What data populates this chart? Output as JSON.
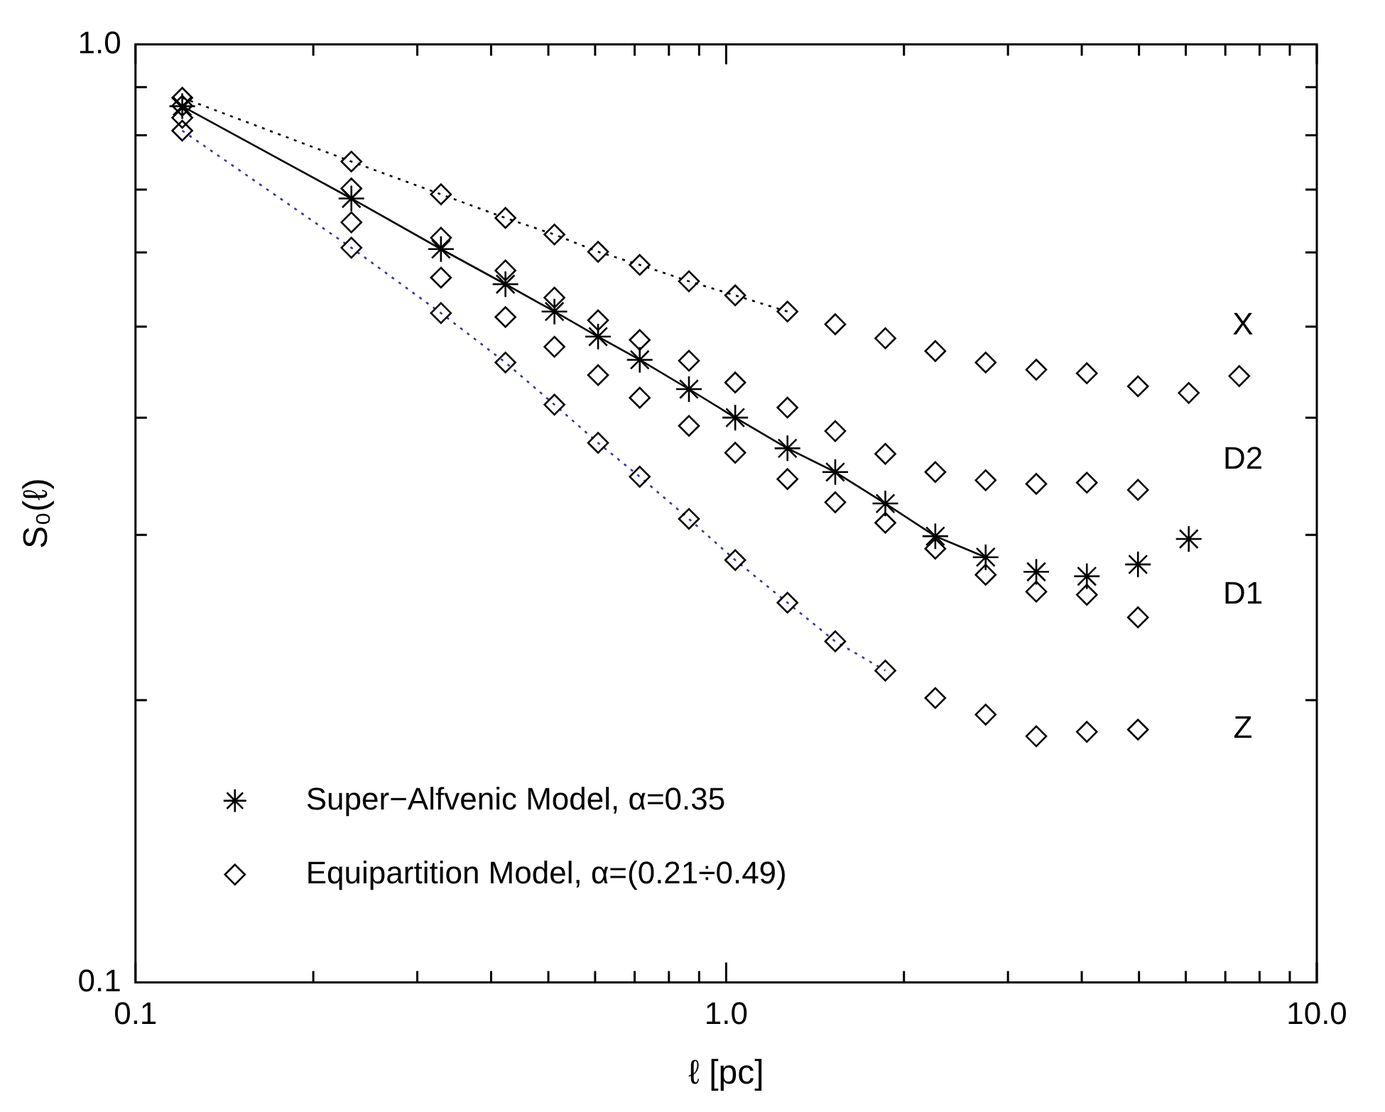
{
  "chart_data": {
    "type": "line",
    "xlabel": "ℓ [pc]",
    "ylabel": "S₀(ℓ)",
    "log": "xy",
    "grid": false,
    "legend": "bottom left",
    "xlim": [
      0.1,
      10
    ],
    "ylim": [
      0.1,
      1
    ],
    "xticks": [
      {
        "value": 0.1,
        "label": "0.1"
      },
      {
        "value": 0.2,
        "label": null
      },
      {
        "value": 0.3,
        "label": null
      },
      {
        "value": 0.4,
        "label": null
      },
      {
        "value": 0.5,
        "label": null
      },
      {
        "value": 0.6,
        "label": null
      },
      {
        "value": 0.7,
        "label": null
      },
      {
        "value": 0.8,
        "label": null
      },
      {
        "value": 0.9,
        "label": null
      },
      {
        "value": 1,
        "label": "1.0"
      },
      {
        "value": 2,
        "label": null
      },
      {
        "value": 3,
        "label": null
      },
      {
        "value": 4,
        "label": null
      },
      {
        "value": 5,
        "label": null
      },
      {
        "value": 6,
        "label": null
      },
      {
        "value": 7,
        "label": null
      },
      {
        "value": 8,
        "label": null
      },
      {
        "value": 9,
        "label": null
      },
      {
        "value": 10,
        "label": "10.0"
      }
    ],
    "yticks": [
      {
        "value": 0.1,
        "label": "0.1"
      },
      {
        "value": 0.2,
        "label": null
      },
      {
        "value": 0.3,
        "label": null
      },
      {
        "value": 0.4,
        "label": null
      },
      {
        "value": 0.5,
        "label": null
      },
      {
        "value": 0.6,
        "label": null
      },
      {
        "value": 0.7,
        "label": null
      },
      {
        "value": 0.8,
        "label": null
      },
      {
        "value": 0.9,
        "label": null
      },
      {
        "value": 1,
        "label": "1.0"
      }
    ],
    "series": [
      {
        "name": "Super−Alfvenic Model, α=0.35",
        "type": "line",
        "color": "#000000",
        "marker": "cross",
        "line_style": "solid",
        "x": [
          0.12,
          0.232,
          0.329,
          0.423,
          0.512,
          0.607,
          0.714,
          0.865,
          1.036,
          1.27,
          1.53,
          1.86,
          2.26,
          2.75
        ],
        "values": [
          0.859,
          0.685,
          0.605,
          0.555,
          0.519,
          0.488,
          0.461,
          0.429,
          0.4,
          0.371,
          0.35,
          0.324,
          0.299,
          0.284
        ]
      },
      {
        "type": "scatter",
        "color": "#000000",
        "marker": "cross",
        "x": [
          3.35,
          4.08,
          4.98,
          6.07
        ],
        "values": [
          0.274,
          0.271,
          0.279,
          0.297
        ]
      },
      {
        "name": "Equipartition Model, α=(0.21÷0.49)",
        "type": "line",
        "color": "#000000",
        "marker": "diamond",
        "line_style": "dotted",
        "x": [
          0.12,
          0.232,
          0.329,
          0.423,
          0.512,
          0.607,
          0.714,
          0.865,
          1.036,
          1.27
        ],
        "values": [
          0.877,
          0.75,
          0.692,
          0.653,
          0.627,
          0.601,
          0.582,
          0.559,
          0.54,
          0.519
        ]
      },
      {
        "type": "scatter",
        "color": "#000000",
        "marker": "diamond",
        "x": [
          1.53,
          1.86,
          2.26,
          2.75,
          3.35,
          4.08,
          4.98,
          6.07,
          7.39
        ],
        "values": [
          0.503,
          0.486,
          0.471,
          0.458,
          0.45,
          0.446,
          0.432,
          0.425,
          0.443
        ]
      },
      {
        "type": "scatter",
        "color": "#000000",
        "marker": "diamond",
        "x": [
          0.12,
          0.232,
          0.329,
          0.423,
          0.512,
          0.607,
          0.714,
          0.865,
          1.036,
          1.27,
          1.53,
          1.86,
          2.26,
          2.75,
          3.35,
          4.08,
          4.98
        ],
        "values": [
          0.86,
          0.702,
          0.622,
          0.574,
          0.537,
          0.508,
          0.484,
          0.46,
          0.436,
          0.41,
          0.387,
          0.366,
          0.35,
          0.343,
          0.34,
          0.341,
          0.335
        ]
      },
      {
        "type": "scatter",
        "color": "#000000",
        "marker": "diamond",
        "x": [
          0.12,
          0.232,
          0.329,
          0.423,
          0.512,
          0.607,
          0.714,
          0.865,
          1.036,
          1.27,
          1.53,
          1.86,
          2.26,
          2.75,
          3.35,
          4.08,
          4.98
        ],
        "values": [
          0.835,
          0.646,
          0.564,
          0.512,
          0.476,
          0.444,
          0.42,
          0.392,
          0.367,
          0.344,
          0.325,
          0.309,
          0.29,
          0.272,
          0.261,
          0.259,
          0.245
        ]
      },
      {
        "type": "line",
        "color": "#3333aa",
        "marker": "diamond",
        "line_style": "dotted",
        "x": [
          0.12,
          0.232,
          0.329,
          0.423,
          0.512,
          0.607,
          0.714,
          0.865,
          1.036,
          1.27,
          1.53,
          1.86
        ],
        "values": [
          0.809,
          0.607,
          0.517,
          0.458,
          0.413,
          0.376,
          0.346,
          0.312,
          0.282,
          0.254,
          0.231,
          0.215
        ]
      },
      {
        "type": "scatter",
        "color": "#000000",
        "marker": "diamond",
        "x": [
          2.26,
          2.75,
          3.35,
          4.08,
          4.98
        ],
        "values": [
          0.201,
          0.193,
          0.183,
          0.185,
          0.186
        ]
      }
    ],
    "annotations": [
      "X",
      "D2",
      "D1",
      "Z"
    ]
  }
}
